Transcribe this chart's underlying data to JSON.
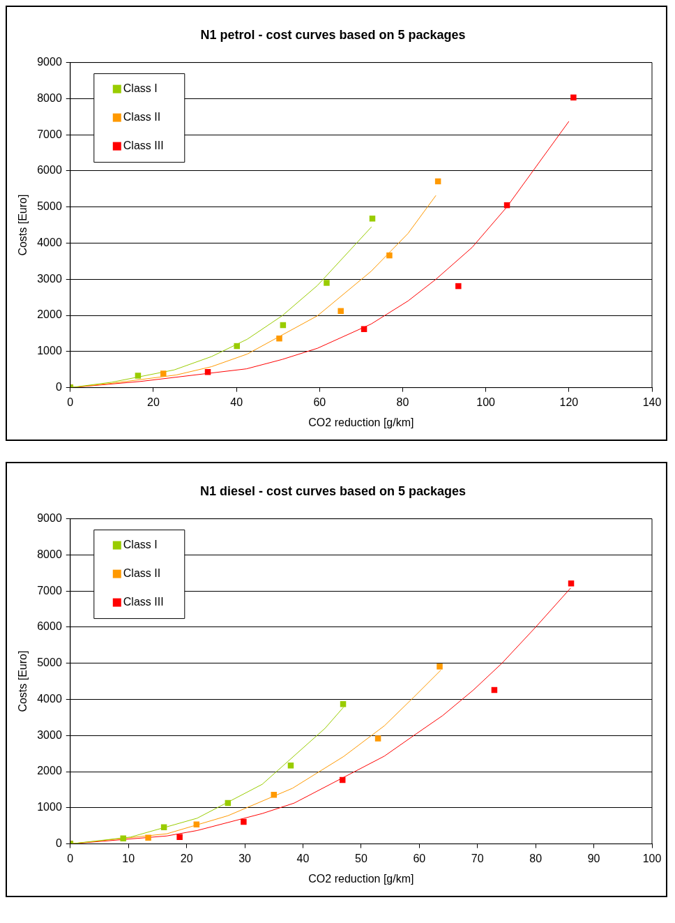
{
  "chart_data": [
    {
      "type": "scatter",
      "title": "N1 petrol - cost curves based on 5 packages",
      "xlabel": "CO2 reduction [g/km]",
      "ylabel": "Costs [Euro]",
      "xlim": [
        0,
        140
      ],
      "xticks": [
        0,
        20,
        40,
        60,
        80,
        100,
        120,
        140
      ],
      "ylim": [
        0,
        9000
      ],
      "yticks": [
        0,
        1000,
        2000,
        3000,
        4000,
        5000,
        6000,
        7000,
        8000,
        9000
      ],
      "grid": "y",
      "legend": "top left",
      "marker": "square",
      "series": [
        {
          "type": "line",
          "marker": "none",
          "color": "#99cc00",
          "x": [
            0,
            10,
            25,
            34,
            42.6,
            51,
            59.5,
            72.5
          ],
          "values": [
            0,
            150,
            490,
            860,
            1340,
            1990,
            2830,
            4450
          ]
        },
        {
          "type": "line",
          "marker": "none",
          "color": "#ff9900",
          "x": [
            0,
            10,
            25.5,
            34,
            42.6,
            59.5,
            72.4,
            81.3,
            88
          ],
          "values": [
            0,
            120,
            350,
            580,
            930,
            1990,
            3220,
            4270,
            5320
          ]
        },
        {
          "type": "line",
          "marker": "none",
          "color": "#ff0000",
          "x": [
            0,
            16.8,
            42.4,
            51,
            59.5,
            72.4,
            81.3,
            88,
            96.7,
            105,
            120
          ],
          "values": [
            0,
            170,
            520,
            780,
            1090,
            1760,
            2400,
            3000,
            3880,
            4990,
            7370
          ]
        },
        {
          "name": "Class I",
          "color": "#99cc00",
          "x": [
            0,
            16.3,
            40.1,
            51.2,
            61.7,
            72.7
          ],
          "values": [
            0,
            330,
            1150,
            1730,
            2900,
            4680
          ]
        },
        {
          "name": "Class II",
          "color": "#ff9900",
          "x": [
            0,
            22.4,
            50.3,
            65.1,
            76.8,
            88.5
          ],
          "values": [
            0,
            390,
            1360,
            2120,
            3660,
            5710
          ]
        },
        {
          "name": "Class III",
          "color": "#ff0000",
          "x": [
            0,
            33.1,
            70.7,
            93.4,
            105.1,
            121.1
          ],
          "values": [
            0,
            430,
            1620,
            2810,
            5050,
            8030
          ]
        }
      ]
    },
    {
      "type": "scatter",
      "title": "N1 diesel - cost curves based on 5 packages",
      "xlabel": "CO2 reduction [g/km]",
      "ylabel": "Costs [Euro]",
      "xlim": [
        0,
        100
      ],
      "xticks": [
        0,
        10,
        20,
        30,
        40,
        50,
        60,
        70,
        80,
        90,
        100
      ],
      "ylim": [
        0,
        9000
      ],
      "yticks": [
        0,
        1000,
        2000,
        3000,
        4000,
        5000,
        6000,
        7000,
        8000,
        9000
      ],
      "grid": "y",
      "legend": "top left",
      "marker": "square",
      "series": [
        {
          "type": "line",
          "marker": "none",
          "color": "#99cc00",
          "x": [
            0,
            10.4,
            21.8,
            33,
            43.8,
            47
          ],
          "values": [
            0,
            190,
            710,
            1650,
            3200,
            3790
          ]
        },
        {
          "type": "line",
          "marker": "none",
          "color": "#ff9900",
          "x": [
            0,
            16.6,
            27.1,
            38.2,
            47,
            54,
            59.1,
            63.7
          ],
          "values": [
            0,
            280,
            780,
            1540,
            2420,
            3270,
            4070,
            4810
          ]
        },
        {
          "type": "line",
          "marker": "none",
          "color": "#ff0000",
          "x": [
            0,
            16.6,
            21.8,
            33,
            38.5,
            54,
            59.5,
            64,
            69.3,
            74.2,
            80,
            86
          ],
          "values": [
            0,
            220,
            370,
            840,
            1130,
            2430,
            3050,
            3550,
            4260,
            5000,
            6000,
            7080
          ]
        },
        {
          "name": "Class I",
          "color": "#99cc00",
          "x": [
            0,
            9.1,
            16.1,
            27.1,
            37.9,
            46.9
          ],
          "values": [
            0,
            150,
            460,
            1130,
            2170,
            3870
          ]
        },
        {
          "name": "Class II",
          "color": "#ff9900",
          "x": [
            0,
            13.4,
            21.7,
            35.0,
            52.9,
            63.5
          ],
          "values": [
            0,
            170,
            540,
            1360,
            2920,
            4910
          ]
        },
        {
          "name": "Class III",
          "color": "#ff0000",
          "x": [
            0,
            18.8,
            29.8,
            46.8,
            72.9,
            86.1
          ],
          "values": [
            0,
            190,
            610,
            1770,
            4260,
            7210
          ]
        }
      ]
    }
  ]
}
